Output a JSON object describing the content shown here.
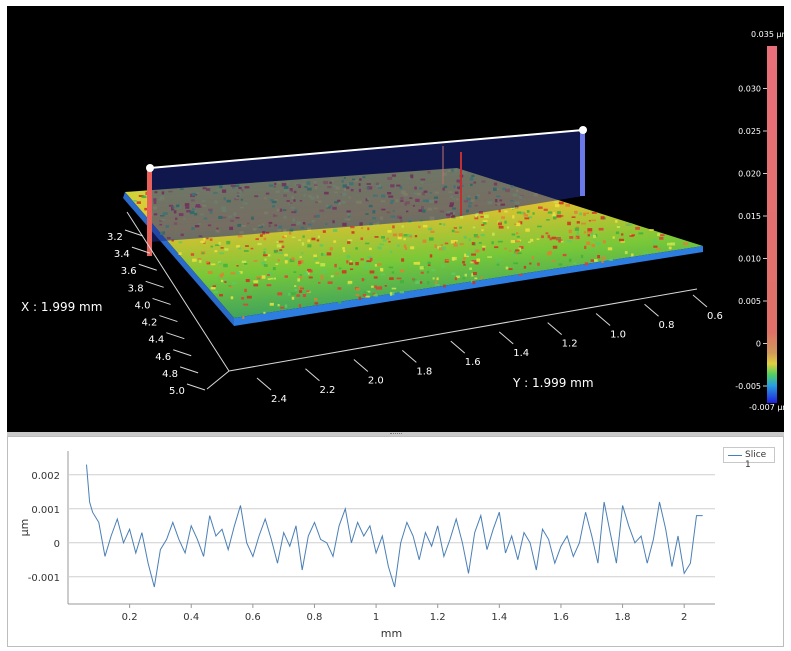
{
  "view3d": {
    "x_readout": "X : 1.999 mm",
    "y_readout": "Y : 1.999 mm",
    "left_axis_ticks": [
      "3.2",
      "3.4",
      "3.6",
      "3.8",
      "4.0",
      "4.2",
      "4.4",
      "4.6",
      "4.8",
      "5.0"
    ],
    "bottom_axis_ticks": [
      "2.4",
      "2.2",
      "2.0",
      "1.8",
      "1.6",
      "1.4",
      "1.2",
      "1.0",
      "0.8",
      "0.6"
    ],
    "colorbar": {
      "top_label": "0.035 µm",
      "bottom_label": "-0.007 µm",
      "ticks": [
        "0.030",
        "0.025",
        "0.020",
        "0.015",
        "0.010",
        "0.005",
        "0",
        "-0.005"
      ],
      "tick_values": [
        0.03,
        0.025,
        0.02,
        0.015,
        0.01,
        0.005,
        0,
        -0.005
      ],
      "min": -0.007,
      "max": 0.035
    },
    "colors": {
      "background": "#000000",
      "cut_plane": "#1e2a8a",
      "marker_left": "#e8605a",
      "marker_right": "#6a78e8"
    }
  },
  "chart_data": {
    "type": "line",
    "xlabel": "mm",
    "ylabel": "µm",
    "xlim": [
      0.0,
      2.1
    ],
    "ylim": [
      -0.0018,
      0.0027
    ],
    "x_ticks": [
      0.2,
      0.4,
      0.6,
      0.8,
      1.0,
      1.2,
      1.4,
      1.6,
      1.8,
      2.0
    ],
    "x_tick_labels": [
      "0.2",
      "0.4",
      "0.6",
      "0.8",
      "1",
      "1.2",
      "1.4",
      "1.6",
      "1.8",
      "2"
    ],
    "y_ticks": [
      0.002,
      0.001,
      0,
      -0.001
    ],
    "y_tick_labels": [
      "0.002",
      "0.001",
      "0",
      "-0.001"
    ],
    "grid": true,
    "legend_placement": "top-right",
    "series": [
      {
        "name": "Slice 1",
        "color": "#4a7fb5",
        "x": [
          0.06,
          0.07,
          0.08,
          0.1,
          0.12,
          0.14,
          0.16,
          0.18,
          0.2,
          0.22,
          0.24,
          0.26,
          0.28,
          0.3,
          0.32,
          0.34,
          0.36,
          0.38,
          0.4,
          0.42,
          0.44,
          0.46,
          0.48,
          0.5,
          0.52,
          0.54,
          0.56,
          0.58,
          0.6,
          0.62,
          0.64,
          0.66,
          0.68,
          0.7,
          0.72,
          0.74,
          0.76,
          0.78,
          0.8,
          0.82,
          0.84,
          0.86,
          0.88,
          0.9,
          0.92,
          0.94,
          0.96,
          0.98,
          1.0,
          1.02,
          1.04,
          1.06,
          1.08,
          1.1,
          1.12,
          1.14,
          1.16,
          1.18,
          1.2,
          1.22,
          1.24,
          1.26,
          1.28,
          1.3,
          1.32,
          1.34,
          1.36,
          1.38,
          1.4,
          1.42,
          1.44,
          1.46,
          1.48,
          1.5,
          1.52,
          1.54,
          1.56,
          1.58,
          1.6,
          1.62,
          1.64,
          1.66,
          1.68,
          1.7,
          1.72,
          1.74,
          1.76,
          1.78,
          1.8,
          1.82,
          1.84,
          1.86,
          1.88,
          1.9,
          1.92,
          1.94,
          1.96,
          1.98,
          2.0,
          2.02,
          2.04,
          2.06
        ],
        "y": [
          0.0023,
          0.0012,
          0.0009,
          0.0006,
          -0.0004,
          0.0002,
          0.0007,
          0.0,
          0.0004,
          -0.0003,
          0.0003,
          -0.0006,
          -0.0013,
          -0.0002,
          0.0001,
          0.0006,
          0.0001,
          -0.0003,
          0.0005,
          0.0001,
          -0.0004,
          0.0008,
          0.0002,
          0.0004,
          -0.0002,
          0.0005,
          0.0011,
          0.0,
          -0.0004,
          0.0002,
          0.0007,
          0.0001,
          -0.0006,
          0.0003,
          -0.0001,
          0.0005,
          -0.0008,
          0.0002,
          0.0006,
          0.0001,
          0.0,
          -0.0004,
          0.0005,
          0.001,
          0.0,
          0.0006,
          0.0002,
          0.0005,
          -0.0003,
          0.0002,
          -0.0007,
          -0.0013,
          0.0,
          0.0006,
          0.0002,
          -0.0005,
          0.0003,
          -0.0001,
          0.0005,
          -0.0004,
          0.0001,
          0.0007,
          0.0,
          -0.0009,
          0.0003,
          0.0008,
          -0.0002,
          0.0004,
          0.0009,
          -0.0003,
          0.0002,
          -0.0005,
          0.0003,
          0.0,
          -0.0008,
          0.0004,
          0.0001,
          -0.0006,
          -0.0001,
          0.0002,
          -0.0004,
          0.0,
          0.0009,
          0.0002,
          -0.0006,
          0.0012,
          0.0003,
          -0.0006,
          0.0011,
          0.0005,
          0.0,
          0.0002,
          -0.0006,
          0.0001,
          0.0012,
          0.0004,
          -0.0007,
          0.0002,
          -0.0009,
          -0.0006,
          0.0008,
          0.0008
        ]
      }
    ]
  }
}
